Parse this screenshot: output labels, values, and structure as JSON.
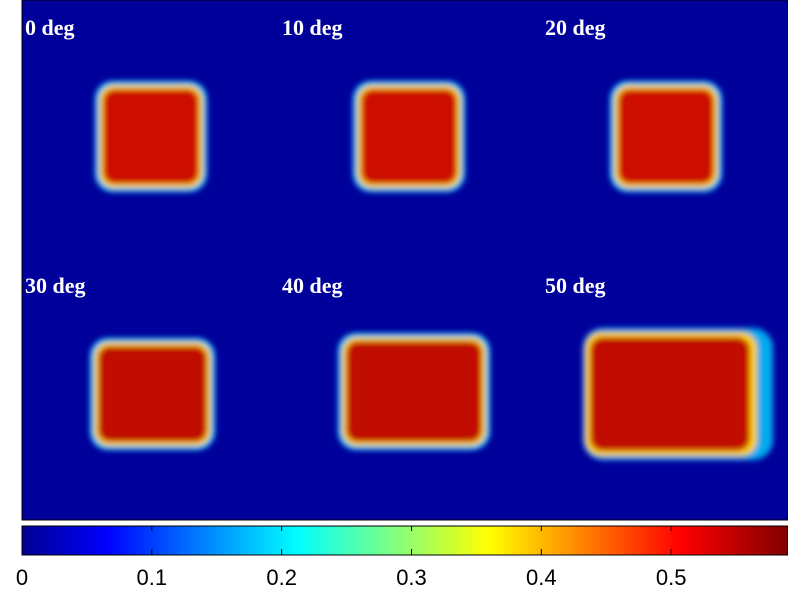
{
  "chart_data": {
    "type": "image",
    "panel_labels": [
      "0 deg",
      "10 deg",
      "20 deg",
      "30 deg",
      "40 deg",
      "50 deg"
    ],
    "colormap": "jet",
    "clim": [
      0,
      0.59
    ],
    "cticks": [
      0,
      0.1,
      0.2,
      0.3,
      0.4,
      0.5
    ]
  }
}
